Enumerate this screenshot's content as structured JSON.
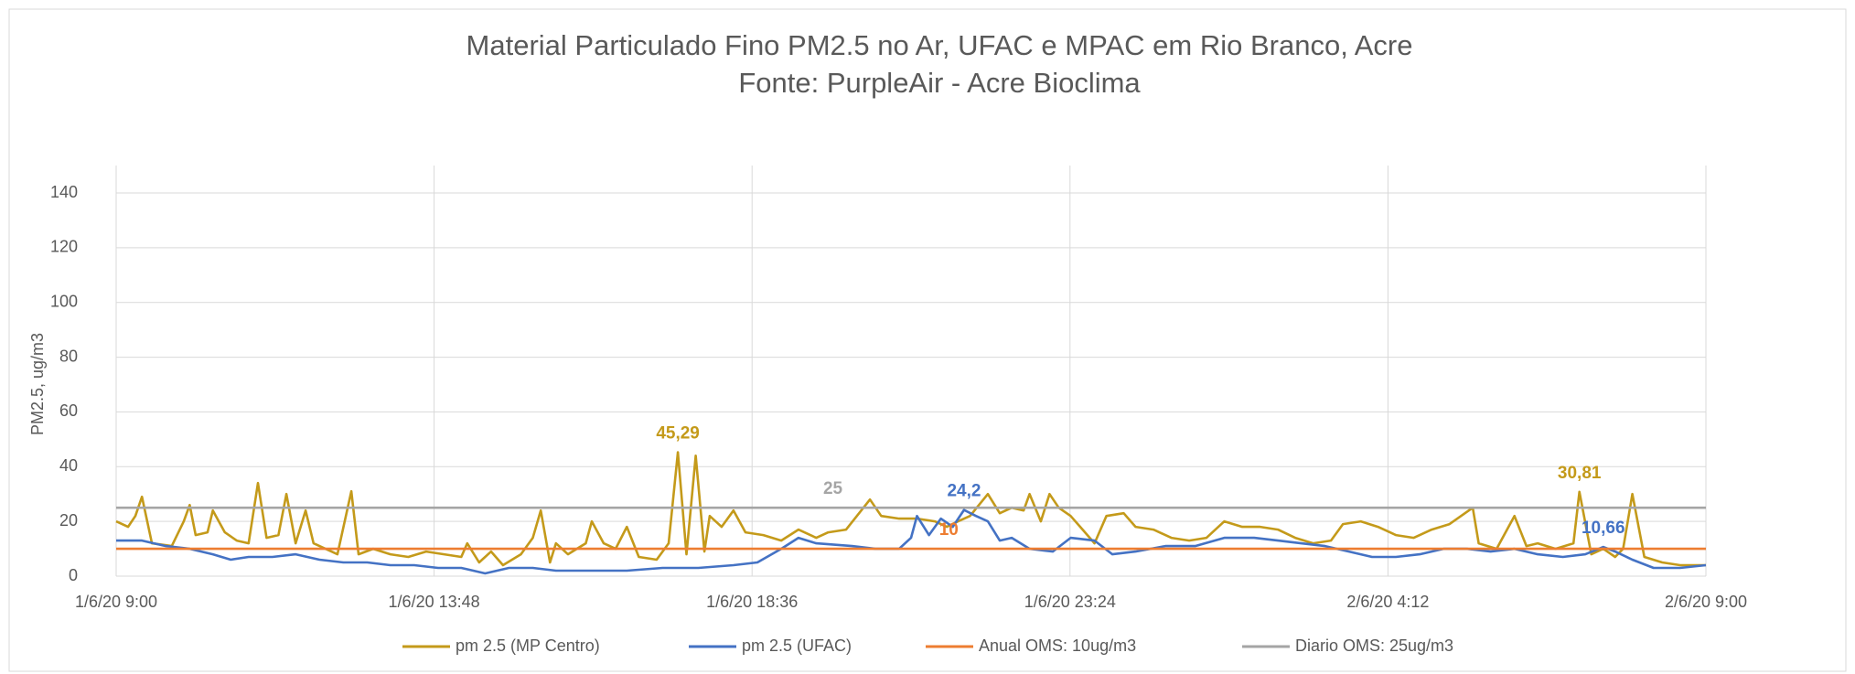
{
  "chart_data": {
    "type": "line",
    "title": "Material Particulado Fino PM2.5 no Ar,  UFAC e  MPAC em Rio Branco, Acre",
    "subtitle": "Fonte: PurpleAir - Acre Bioclima",
    "y_label": "PM2.5, ug/m3",
    "xlim": [
      0,
      24
    ],
    "xticks": [
      {
        "value": 0,
        "label": "1/6/20 9:00"
      },
      {
        "value": 4.8,
        "label": "1/6/20 13:48"
      },
      {
        "value": 9.6,
        "label": "1/6/20 18:36"
      },
      {
        "value": 14.4,
        "label": "1/6/20 23:24"
      },
      {
        "value": 19.2,
        "label": "2/6/20 4:12"
      },
      {
        "value": 24,
        "label": "2/6/20 9:00"
      }
    ],
    "ylim": [
      0,
      140
    ],
    "yticks": [
      0,
      20,
      40,
      60,
      80,
      100,
      120,
      140
    ],
    "grid": true,
    "legend": "bottom",
    "series": [
      {
        "name": "pm 2.5 (MP Centro)",
        "color": "#c49a1a",
        "x": [
          0,
          0.18,
          0.29,
          0.39,
          0.54,
          0.84,
          1.02,
          1.11,
          1.2,
          1.38,
          1.46,
          1.64,
          1.82,
          2,
          2.14,
          2.27,
          2.45,
          2.57,
          2.71,
          2.86,
          2.98,
          3.16,
          3.34,
          3.55,
          3.66,
          3.88,
          4.14,
          4.41,
          4.68,
          4.95,
          5.21,
          5.3,
          5.48,
          5.66,
          5.84,
          6.11,
          6.29,
          6.41,
          6.55,
          6.64,
          6.82,
          7.09,
          7.18,
          7.36,
          7.54,
          7.71,
          7.89,
          8.16,
          8.34,
          8.48,
          8.61,
          8.75,
          8.88,
          8.96,
          9.14,
          9.32,
          9.5,
          9.77,
          10.04,
          10.3,
          10.57,
          10.75,
          11.02,
          11.38,
          11.55,
          11.82,
          12.09,
          12.36,
          12.54,
          12.71,
          12.89,
          13.16,
          13.34,
          13.52,
          13.7,
          13.79,
          13.96,
          14.09,
          14.23,
          14.41,
          14.59,
          14.77,
          14.95,
          15.21,
          15.39,
          15.66,
          15.93,
          16.2,
          16.46,
          16.73,
          17,
          17.27,
          17.54,
          17.8,
          18.07,
          18.34,
          18.52,
          18.79,
          19.05,
          19.32,
          19.59,
          19.86,
          20.13,
          20.48,
          20.57,
          20.84,
          21.11,
          21.29,
          21.46,
          21.73,
          22,
          22.09,
          22.27,
          22.45,
          22.63,
          22.75,
          22.89,
          23.07,
          23.34,
          23.61,
          24
        ],
        "values": [
          20,
          18,
          22,
          29,
          12,
          11,
          20,
          26,
          15,
          16,
          24,
          16,
          13,
          12,
          34,
          14,
          15,
          30,
          12,
          24,
          12,
          10,
          8,
          31,
          8,
          10,
          8,
          7,
          9,
          8,
          7,
          12,
          5,
          9,
          4,
          8,
          14,
          24,
          5,
          12,
          8,
          12,
          20,
          12,
          10,
          18,
          7,
          6,
          12,
          45.29,
          8,
          44,
          9,
          22,
          18,
          24,
          16,
          15,
          13,
          17,
          14,
          16,
          17,
          28,
          22,
          21,
          21,
          20,
          18,
          20,
          22,
          30,
          23,
          25,
          24,
          30,
          20,
          30,
          25,
          22,
          17,
          12,
          22,
          23,
          18,
          17,
          14,
          13,
          14,
          20,
          18,
          18,
          17,
          14,
          12,
          13,
          19,
          20,
          18,
          15,
          14,
          17,
          19,
          25,
          12,
          10,
          22,
          11,
          12,
          10,
          12,
          30.81,
          8,
          10,
          7,
          10,
          30,
          7,
          5,
          4,
          4
        ],
        "value_labels": [
          null,
          null,
          null,
          null,
          null,
          null,
          null,
          null,
          null,
          null,
          null,
          null,
          null,
          null,
          null,
          null,
          null,
          null,
          null,
          null,
          null,
          null,
          null,
          null,
          null,
          null,
          null,
          null,
          null,
          null,
          null,
          null,
          null,
          null,
          null,
          null,
          null,
          null,
          null,
          null,
          null,
          null,
          null,
          null,
          null,
          null,
          null,
          null,
          null,
          "45,29",
          null,
          null,
          null,
          null,
          null,
          null,
          null,
          null,
          null,
          null,
          null,
          null,
          null,
          null,
          null,
          null,
          null,
          null,
          null,
          null,
          null,
          null,
          null,
          null,
          null,
          null,
          null,
          null,
          null,
          null,
          null,
          null,
          null,
          null,
          null,
          null,
          null,
          null,
          null,
          null,
          null,
          null,
          null,
          null,
          null,
          null,
          null,
          null,
          null,
          null,
          null,
          null,
          null,
          null,
          null,
          null,
          null,
          null,
          null,
          null,
          null,
          "30,81",
          null,
          null,
          null,
          null,
          null,
          null,
          null,
          null,
          null
        ]
      },
      {
        "name": "pm 2.5 (UFAC)",
        "color": "#4472c4",
        "x": [
          0,
          0.39,
          0.75,
          1.11,
          1.46,
          1.73,
          2,
          2.36,
          2.71,
          3.07,
          3.43,
          3.79,
          4.14,
          4.5,
          4.86,
          5.21,
          5.57,
          5.93,
          6.29,
          6.64,
          7.18,
          7.71,
          8.25,
          8.79,
          9.32,
          9.68,
          10.04,
          10.3,
          10.57,
          11.11,
          11.46,
          11.82,
          12,
          12.09,
          12.27,
          12.45,
          12.63,
          12.8,
          12.98,
          13.16,
          13.34,
          13.52,
          13.79,
          14.14,
          14.41,
          14.77,
          15.04,
          15.39,
          15.84,
          16.29,
          16.73,
          17.18,
          17.54,
          17.89,
          18.25,
          18.61,
          18.96,
          19.32,
          19.68,
          20.04,
          20.39,
          20.75,
          21.11,
          21.46,
          21.84,
          22.18,
          22.45,
          22.63,
          22.89,
          23.21,
          23.61,
          24
        ],
        "values": [
          13,
          13,
          11,
          10,
          8,
          6,
          7,
          7,
          8,
          6,
          5,
          5,
          4,
          4,
          3,
          3,
          1,
          3,
          3,
          2,
          2,
          2,
          3,
          3,
          4,
          5,
          10,
          14,
          12,
          11,
          10,
          10,
          14,
          22,
          15,
          21,
          18,
          24.2,
          22,
          20,
          13,
          14,
          10,
          9,
          14,
          13,
          8,
          9,
          11,
          11,
          14,
          14,
          13,
          12,
          11,
          9,
          7,
          7,
          8,
          10,
          10,
          9,
          10,
          8,
          7,
          8,
          10.66,
          9,
          6,
          3,
          3,
          4
        ],
        "value_labels": [
          null,
          null,
          null,
          null,
          null,
          null,
          null,
          null,
          null,
          null,
          null,
          null,
          null,
          null,
          null,
          null,
          null,
          null,
          null,
          null,
          null,
          null,
          null,
          null,
          null,
          null,
          null,
          null,
          null,
          null,
          null,
          null,
          null,
          null,
          null,
          null,
          null,
          "24,2",
          null,
          null,
          null,
          null,
          null,
          null,
          null,
          null,
          null,
          null,
          null,
          null,
          null,
          null,
          null,
          null,
          null,
          null,
          null,
          null,
          null,
          null,
          null,
          null,
          null,
          null,
          null,
          null,
          "10,66",
          null,
          null,
          null,
          null,
          null
        ]
      },
      {
        "name": "Anual OMS: 10ug/m3",
        "color": "#ed7d31",
        "x": [
          0,
          12.57,
          24
        ],
        "values": [
          10,
          10,
          10
        ],
        "value_labels": [
          null,
          "10",
          null
        ]
      },
      {
        "name": "Diario OMS: 25ug/m3",
        "color": "#a5a5a5",
        "x": [
          0,
          10.82,
          24
        ],
        "values": [
          25,
          25,
          25
        ],
        "value_labels": [
          null,
          "25",
          null
        ]
      }
    ]
  }
}
